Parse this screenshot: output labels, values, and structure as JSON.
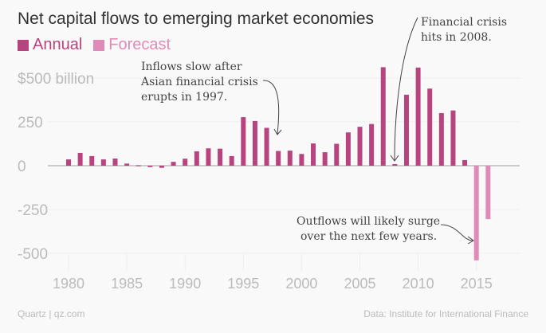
{
  "title": "Net capital flows to emerging market economies",
  "legend": [
    {
      "label": "Annual",
      "color": "#b8447f"
    },
    {
      "label": "Forecast",
      "color": "#e08ab8"
    }
  ],
  "footer": {
    "left": "Quartz | qz.com",
    "right": "Data: Institute for International Finance"
  },
  "chart_data": {
    "type": "bar",
    "title": "Net capital flows to emerging market economies",
    "ylabel": "$ billion",
    "ylim": [
      -560,
      580
    ],
    "yticks": [
      {
        "value": 500,
        "label": "$500 billion"
      },
      {
        "value": 250,
        "label": "250"
      },
      {
        "value": 0,
        "label": "0"
      },
      {
        "value": -250,
        "label": "-250"
      },
      {
        "value": -500,
        "label": "-500"
      }
    ],
    "xticks": [
      1980,
      1985,
      1990,
      1995,
      2000,
      2005,
      2010,
      2015
    ],
    "series": [
      {
        "name": "Annual",
        "color": "#b8447f",
        "x": [
          1980,
          1981,
          1982,
          1983,
          1984,
          1985,
          1986,
          1987,
          1988,
          1989,
          1990,
          1991,
          1992,
          1993,
          1994,
          1995,
          1996,
          1997,
          1998,
          1999,
          2000,
          2001,
          2002,
          2003,
          2004,
          2005,
          2006,
          2007,
          2008,
          2009,
          2010,
          2011,
          2012,
          2013,
          2014
        ],
        "values": [
          36,
          73,
          55,
          36,
          41,
          12,
          2,
          -8,
          -12,
          22,
          40,
          82,
          99,
          97,
          55,
          277,
          255,
          216,
          84,
          86,
          67,
          127,
          77,
          125,
          190,
          222,
          238,
          562,
          9,
          405,
          560,
          440,
          300,
          315,
          32
        ]
      },
      {
        "name": "Forecast",
        "color": "#e08ab8",
        "x": [
          2015,
          2016
        ],
        "values": [
          -540,
          -305
        ]
      }
    ],
    "annotations": [
      {
        "lines": [
          "Inflows slow after",
          "Asian financial crisis",
          "erupts in 1997."
        ],
        "year": 1998
      },
      {
        "lines": [
          "Financial crisis",
          "hits in 2008."
        ],
        "year": 2008
      },
      {
        "lines": [
          "Outflows will likely surge",
          "over the next few years."
        ],
        "year": 2015
      }
    ]
  }
}
